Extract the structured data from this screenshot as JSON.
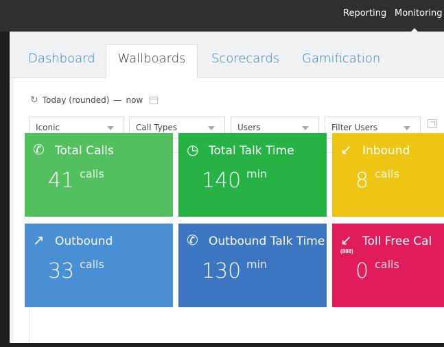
{
  "topnav": {
    "reporting": "Reporting",
    "monitoring": "Monitoring"
  },
  "tabs": [
    {
      "label": "Dashboard",
      "active": false
    },
    {
      "label": "Wallboards",
      "active": true
    },
    {
      "label": "Scorecards",
      "active": false
    },
    {
      "label": "Gamification",
      "active": false
    }
  ],
  "range": {
    "label": "Today (rounded)",
    "separator": "—",
    "end": "now"
  },
  "filters": [
    {
      "value": "Iconic"
    },
    {
      "value": "Call Types"
    },
    {
      "value": "Users"
    },
    {
      "value": "Filter Users"
    }
  ],
  "cards": [
    {
      "title": "Total Calls",
      "value": "41",
      "unit": "calls",
      "icon": "phone-sum-icon",
      "color": "#52c05f"
    },
    {
      "title": "Total Talk Time",
      "value": "140",
      "unit": "min",
      "icon": "phone-clock-icon",
      "color": "#27b245"
    },
    {
      "title": "Inbound",
      "value": "8",
      "unit": "calls",
      "icon": "phone-inbound-icon",
      "color": "#eec513"
    },
    {
      "title": "Outbound",
      "value": "33",
      "unit": "calls",
      "icon": "phone-outbound-icon",
      "color": "#4a8fd4"
    },
    {
      "title": "Outbound Talk Time",
      "value": "130",
      "unit": "min",
      "icon": "phone-outbound-time-icon",
      "color": "#3d76c0"
    },
    {
      "title": "Toll Free Cal",
      "value": "0",
      "unit": "calls",
      "icon": "toll-free-icon",
      "icon_text": "(888)",
      "color": "#e11c5a"
    }
  ]
}
